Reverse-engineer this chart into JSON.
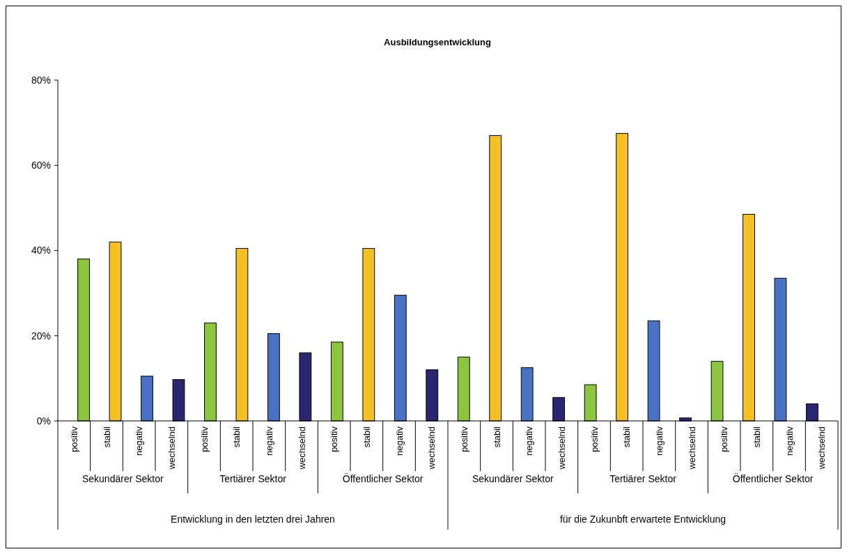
{
  "chart_data": {
    "type": "bar",
    "title": "Ausbildungsentwicklung",
    "categories": [
      "positiv",
      "stabil",
      "negativ",
      "wechselnd",
      "positiv",
      "stabil",
      "negativ",
      "wechselnd",
      "positiv",
      "stabil",
      "negativ",
      "wechselnd",
      "positiv",
      "stabil",
      "negativ",
      "wechselnd",
      "positiv",
      "stabil",
      "negativ",
      "wechselnd",
      "positiv",
      "stabil",
      "negativ",
      "wechselnd"
    ],
    "values": [
      38,
      42,
      10.5,
      9.7,
      23,
      40.5,
      20.5,
      16,
      18.5,
      40.5,
      29.5,
      12,
      15,
      67,
      12.5,
      5.5,
      8.5,
      67.5,
      23.5,
      0.7,
      14,
      48.5,
      33.5,
      4
    ],
    "colors": [
      "#8cc63f",
      "#f5c023",
      "#4a72c4",
      "#2b2670",
      "#8cc63f",
      "#f5c023",
      "#4a72c4",
      "#2b2670",
      "#8cc63f",
      "#f5c023",
      "#4a72c4",
      "#2b2670",
      "#8cc63f",
      "#f5c023",
      "#4a72c4",
      "#2b2670",
      "#8cc63f",
      "#f5c023",
      "#4a72c4",
      "#2b2670",
      "#8cc63f",
      "#f5c023",
      "#4a72c4",
      "#2b2670"
    ],
    "ylim": [
      0,
      80
    ],
    "yticks": [
      {
        "value": 0,
        "label": "0%"
      },
      {
        "value": 20,
        "label": "20%"
      },
      {
        "value": 40,
        "label": "40%"
      },
      {
        "value": 60,
        "label": "60%"
      },
      {
        "value": 80,
        "label": "80%"
      }
    ],
    "annotations": [
      "Sekundärer Sektor",
      "Tertiärer Sektor",
      "Öffentlicher Sektor",
      "Sekundärer Sektor",
      "Tertiärer Sektor",
      "Öffentlicher Sektor",
      "Entwicklung in den letzten drei Jahren",
      "für die Zukunbft erwartete Entwicklung"
    ],
    "grid": false
  }
}
